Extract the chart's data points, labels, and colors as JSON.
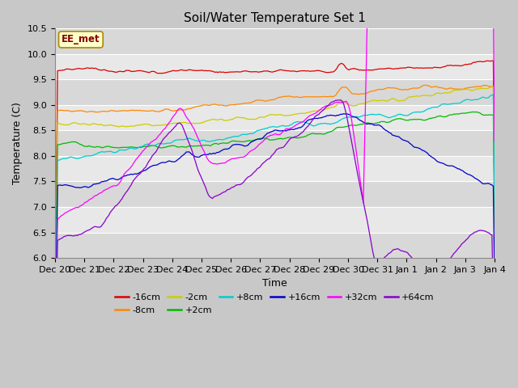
{
  "title": "Soil/Water Temperature Set 1",
  "xlabel": "Time",
  "ylabel": "Temperature (C)",
  "ylim": [
    6.0,
    10.5
  ],
  "fig_bg": "#c8c8c8",
  "plot_bg": "#e0e0e0",
  "grid_color": "#ffffff",
  "annotation_text": "EE_met",
  "annotation_bg": "#ffffcc",
  "annotation_border": "#aa8800",
  "annotation_text_color": "#880000",
  "series": [
    {
      "label": "-16cm",
      "color": "#dd0000"
    },
    {
      "label": "-8cm",
      "color": "#ff8800"
    },
    {
      "label": "-2cm",
      "color": "#cccc00"
    },
    {
      "label": "+2cm",
      "color": "#00bb00"
    },
    {
      "label": "+8cm",
      "color": "#00cccc"
    },
    {
      "label": "+16cm",
      "color": "#0000cc"
    },
    {
      "label": "+32cm",
      "color": "#ff00ff"
    },
    {
      "label": "+64cm",
      "color": "#8800cc"
    }
  ],
  "x_tick_labels": [
    "Dec 20",
    "Dec 21",
    "Dec 22",
    "Dec 23",
    "Dec 24",
    "Dec 25",
    "Dec 26",
    "Dec 27",
    "Dec 28",
    "Dec 29",
    "Dec 30",
    "Dec 31",
    "Jan 1",
    "Jan 2",
    "Jan 3",
    "Jan 4"
  ],
  "n_points": 336,
  "dt_days": 15
}
